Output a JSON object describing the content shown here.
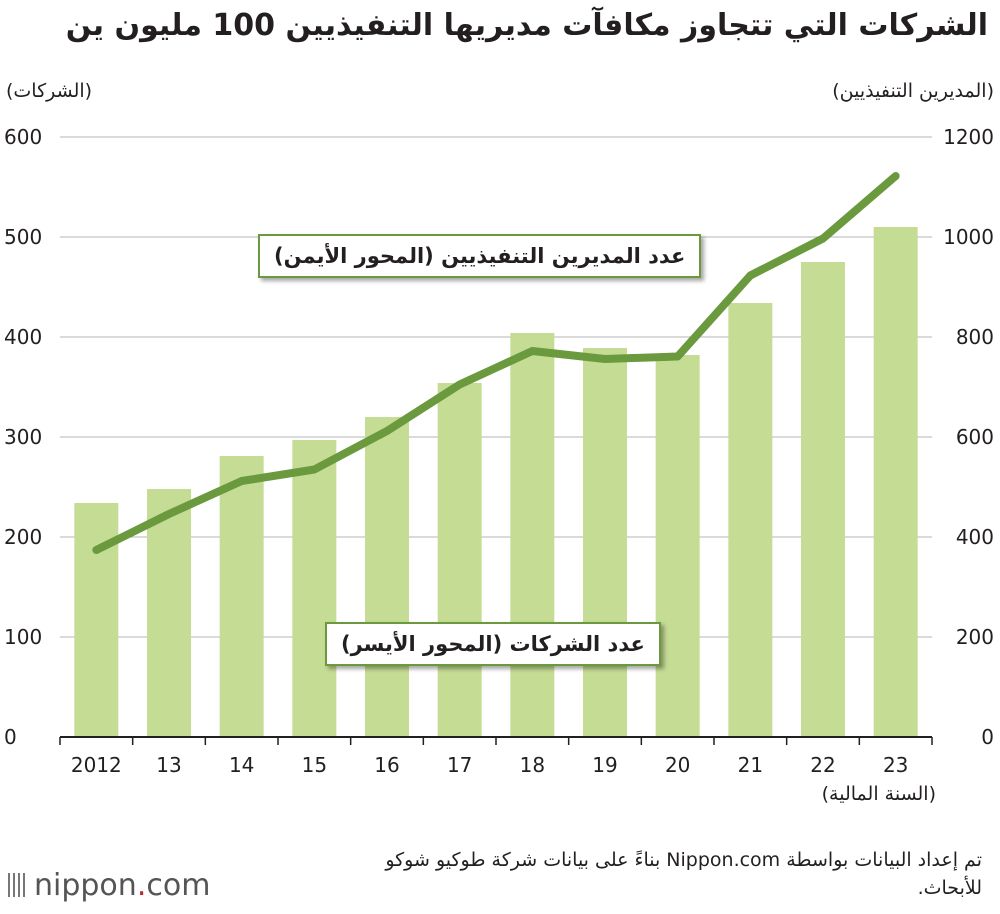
{
  "title": "الشركات التي تتجاوز مكافآت مديريها التنفيذيين 100 مليون ين",
  "left_axis_label": "(الشركات)",
  "right_axis_label": "(المديرين التنفيذيين)",
  "x_axis_unit": "(السنة المالية)",
  "callouts": {
    "executives": "عدد المديرين التنفيذيين (المحور الأيمن)",
    "companies": "عدد الشركات (المحور الأيسر)"
  },
  "source": "تم إعداد البيانات بواسطة Nippon.com بناءً على بيانات شركة طوكيو شوكو للأبحاث.",
  "logo": {
    "main": "nippon",
    "dot": ".",
    "suffix": "com"
  },
  "colors": {
    "bar": "#c5dc95",
    "line": "#6b9a3e",
    "grid": "#b5b5b5",
    "axis": "#231f20"
  },
  "chart_data": {
    "type": "bar+line",
    "title": "الشركات التي تتجاوز مكافآت مديريها التنفيذيين 100 مليون ين",
    "categories": [
      "2012",
      "13",
      "14",
      "15",
      "16",
      "17",
      "18",
      "19",
      "20",
      "21",
      "22",
      "23"
    ],
    "xlabel": "(السنة المالية)",
    "series": [
      {
        "name": "عدد الشركات (المحور الأيسر)",
        "type": "bar",
        "axis": "left",
        "values": [
          234,
          248,
          281,
          297,
          320,
          354,
          404,
          389,
          382,
          434,
          475,
          510
        ]
      },
      {
        "name": "عدد المديرين التنفيذيين (المحور الأيمن)",
        "type": "line",
        "axis": "right",
        "values": [
          374,
          446,
          512,
          535,
          612,
          705,
          772,
          756,
          761,
          923,
          997,
          1122
        ]
      }
    ],
    "left_axis": {
      "label": "(الشركات)",
      "ylim": [
        0,
        600
      ],
      "ticks": [
        0,
        100,
        200,
        300,
        400,
        500,
        600
      ]
    },
    "right_axis": {
      "label": "(المديرين التنفيذيين)",
      "ylim": [
        0,
        1200
      ],
      "ticks": [
        0,
        200,
        400,
        600,
        800,
        1000,
        1200
      ]
    },
    "grid": true
  }
}
